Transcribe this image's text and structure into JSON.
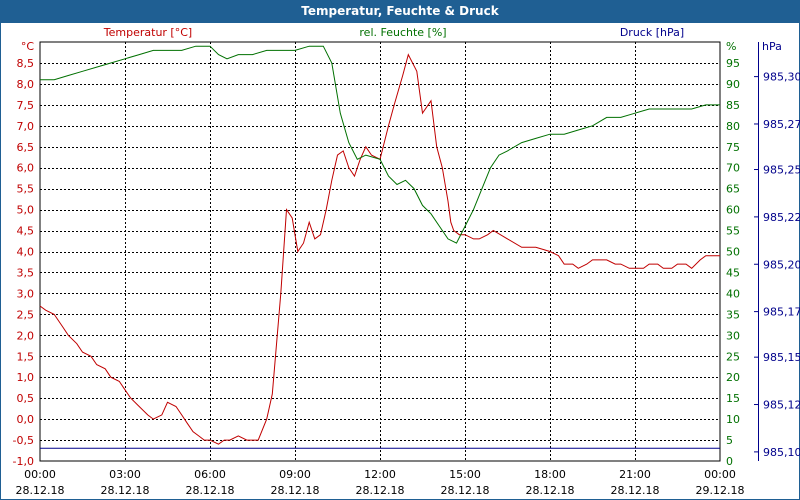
{
  "window": {
    "title": "Temperatur, Feuchte & Druck",
    "title_bar_color": "#1f5f93",
    "title_text_color": "#ffffff"
  },
  "colors": {
    "temperature": "#c00000",
    "humidity": "#007000",
    "pressure": "#00008b",
    "grid": "#000000"
  },
  "chart_data": {
    "type": "line",
    "title": "Temperatur, Feuchte & Druck",
    "grid": true,
    "x_ticks": [
      {
        "time": "00:00",
        "date": "28.12.18"
      },
      {
        "time": "03:00",
        "date": "28.12.18"
      },
      {
        "time": "06:00",
        "date": "28.12.18"
      },
      {
        "time": "09:00",
        "date": "28.12.18"
      },
      {
        "time": "12:00",
        "date": "28.12.18"
      },
      {
        "time": "15:00",
        "date": "28.12.18"
      },
      {
        "time": "18:00",
        "date": "28.12.18"
      },
      {
        "time": "21:00",
        "date": "28.12.18"
      },
      {
        "time": "00:00",
        "date": "29.12.18"
      }
    ],
    "xlim": [
      "28.12.18 00:00",
      "29.12.18 00:00"
    ],
    "axes": {
      "temperature": {
        "label": "Temperatur [°C]",
        "unit": "°C",
        "ylim": [
          -1.0,
          9.0
        ],
        "ticks": [
          "8,5",
          "8,0",
          "7,5",
          "7,0",
          "6,5",
          "6,0",
          "5,5",
          "5,0",
          "4,5",
          "4,0",
          "3,5",
          "3,0",
          "2,5",
          "2,0",
          "1,5",
          "1,0",
          "0,5",
          "0,0",
          "-0,5",
          "-1,0"
        ],
        "tick_values": [
          8.5,
          8.0,
          7.5,
          7.0,
          6.5,
          6.0,
          5.5,
          5.0,
          4.5,
          4.0,
          3.5,
          3.0,
          2.5,
          2.0,
          1.5,
          1.0,
          0.5,
          0.0,
          -0.5,
          -1.0
        ]
      },
      "humidity": {
        "label": "rel. Feuchte [%]",
        "unit": "%",
        "ylim": [
          0,
          100
        ],
        "ticks": [
          "95",
          "90",
          "85",
          "80",
          "75",
          "70",
          "65",
          "60",
          "55",
          "50",
          "45",
          "40",
          "35",
          "30",
          "25",
          "20",
          "15",
          "10",
          "5",
          "0"
        ],
        "tick_values": [
          95,
          90,
          85,
          80,
          75,
          70,
          65,
          60,
          55,
          50,
          45,
          40,
          35,
          30,
          25,
          20,
          15,
          10,
          5,
          0
        ]
      },
      "pressure": {
        "label": "Druck [hPa]",
        "unit": "hPa",
        "ylim": [
          985.087,
          985.317
        ],
        "ticks": [
          "985,30",
          "985,27",
          "985,25",
          "985,22",
          "985,20",
          "985,17",
          "985,15",
          "985,12",
          "985,10"
        ],
        "tick_values": [
          985.298,
          985.272,
          985.247,
          985.221,
          985.195,
          985.169,
          985.144,
          985.118,
          985.092
        ]
      }
    },
    "series": [
      {
        "name": "Temperatur [°C]",
        "axis": "temperature",
        "x": [
          0,
          0.2,
          0.5,
          0.8,
          1.0,
          1.3,
          1.5,
          1.8,
          2.0,
          2.3,
          2.5,
          2.8,
          3.0,
          3.2,
          3.5,
          3.8,
          4.0,
          4.3,
          4.5,
          4.8,
          5.0,
          5.2,
          5.4,
          5.6,
          5.8,
          6.0,
          6.3,
          6.5,
          6.7,
          7.0,
          7.3,
          7.5,
          7.7,
          8.0,
          8.2,
          8.5,
          8.7,
          8.9,
          9.1,
          9.3,
          9.5,
          9.7,
          9.9,
          10.1,
          10.3,
          10.5,
          10.7,
          10.9,
          11.1,
          11.3,
          11.5,
          11.7,
          12.0,
          12.3,
          12.5,
          12.8,
          13.0,
          13.3,
          13.5,
          13.8,
          14.0,
          14.2,
          14.4,
          14.5,
          14.6,
          14.8,
          15.0,
          15.3,
          15.5,
          15.8,
          16.0,
          16.5,
          17.0,
          17.5,
          18.0,
          18.3,
          18.5,
          18.8,
          19.0,
          19.3,
          19.5,
          19.8,
          20.0,
          20.3,
          20.5,
          20.8,
          21.0,
          21.3,
          21.5,
          21.8,
          22.0,
          22.3,
          22.5,
          22.8,
          23.0,
          23.3,
          23.5,
          23.8,
          24.0
        ],
        "values": [
          2.7,
          2.6,
          2.5,
          2.2,
          2.0,
          1.8,
          1.6,
          1.5,
          1.3,
          1.2,
          1.0,
          0.9,
          0.7,
          0.5,
          0.3,
          0.1,
          0.0,
          0.1,
          0.4,
          0.3,
          0.1,
          -0.1,
          -0.3,
          -0.4,
          -0.5,
          -0.5,
          -0.6,
          -0.5,
          -0.5,
          -0.4,
          -0.5,
          -0.5,
          -0.5,
          0.0,
          0.6,
          3.0,
          5.0,
          4.8,
          4.0,
          4.2,
          4.7,
          4.3,
          4.4,
          5.0,
          5.7,
          6.3,
          6.4,
          6.0,
          5.8,
          6.2,
          6.5,
          6.3,
          6.2,
          7.0,
          7.5,
          8.2,
          8.7,
          8.3,
          7.3,
          7.6,
          6.5,
          6.0,
          5.2,
          4.7,
          4.5,
          4.4,
          4.4,
          4.3,
          4.3,
          4.4,
          4.5,
          4.3,
          4.1,
          4.1,
          4.0,
          3.9,
          3.7,
          3.7,
          3.6,
          3.7,
          3.8,
          3.8,
          3.8,
          3.7,
          3.7,
          3.6,
          3.6,
          3.6,
          3.7,
          3.7,
          3.6,
          3.6,
          3.7,
          3.7,
          3.6,
          3.8,
          3.9,
          3.9,
          3.9
        ]
      },
      {
        "name": "rel. Feuchte [%]",
        "axis": "humidity",
        "x": [
          0,
          0.5,
          1.0,
          1.5,
          2.0,
          2.5,
          3.0,
          3.5,
          4.0,
          4.5,
          5.0,
          5.5,
          6.0,
          6.3,
          6.6,
          7.0,
          7.5,
          8.0,
          8.5,
          9.0,
          9.5,
          10.0,
          10.3,
          10.6,
          10.9,
          11.2,
          11.5,
          12.0,
          12.3,
          12.6,
          12.9,
          13.2,
          13.5,
          13.8,
          14.1,
          14.4,
          14.7,
          15.0,
          15.3,
          15.6,
          15.9,
          16.2,
          16.5,
          17.0,
          17.5,
          18.0,
          18.5,
          19.0,
          19.5,
          20.0,
          20.5,
          21.0,
          21.5,
          22.0,
          22.5,
          23.0,
          23.5,
          24.0
        ],
        "values": [
          91,
          91,
          92,
          93,
          94,
          95,
          96,
          97,
          98,
          98,
          98,
          99,
          99,
          97,
          96,
          97,
          97,
          98,
          98,
          98,
          99,
          99,
          95,
          83,
          76,
          72,
          73,
          72,
          68,
          66,
          67,
          65,
          61,
          59,
          56,
          53,
          52,
          56,
          60,
          65,
          70,
          73,
          74,
          76,
          77,
          78,
          78,
          79,
          80,
          82,
          82,
          83,
          84,
          84,
          84,
          84,
          85,
          85
        ]
      },
      {
        "name": "Druck [hPa]",
        "axis": "pressure",
        "x": [
          0,
          24
        ],
        "values": [
          985.094,
          985.094
        ]
      }
    ]
  }
}
